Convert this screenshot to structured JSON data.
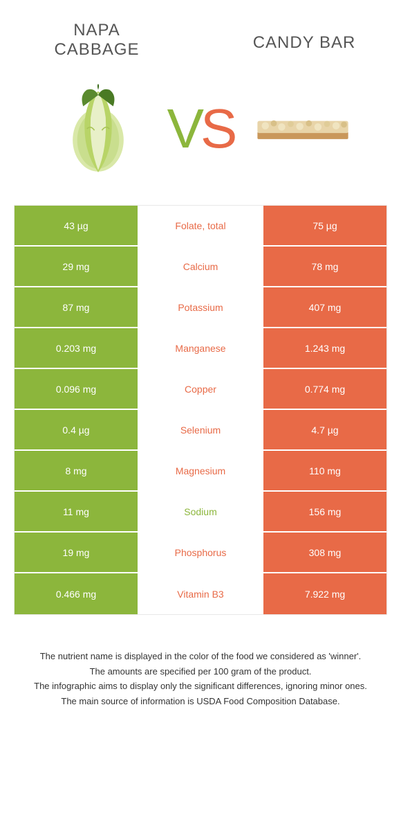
{
  "titles": {
    "left": "NAPA CABBAGE",
    "right": "CANDY BAR"
  },
  "vs": {
    "v": "V",
    "s": "S"
  },
  "colors": {
    "green": "#8cb63c",
    "orange": "#e86a47",
    "bg": "#ffffff",
    "text": "#333333"
  },
  "rows": [
    {
      "left": "43 µg",
      "label": "Folate, total",
      "winner": "orange",
      "right": "75 µg"
    },
    {
      "left": "29 mg",
      "label": "Calcium",
      "winner": "orange",
      "right": "78 mg"
    },
    {
      "left": "87 mg",
      "label": "Potassium",
      "winner": "orange",
      "right": "407 mg"
    },
    {
      "left": "0.203 mg",
      "label": "Manganese",
      "winner": "orange",
      "right": "1.243 mg"
    },
    {
      "left": "0.096 mg",
      "label": "Copper",
      "winner": "orange",
      "right": "0.774 mg"
    },
    {
      "left": "0.4 µg",
      "label": "Selenium",
      "winner": "orange",
      "right": "4.7 µg"
    },
    {
      "left": "8 mg",
      "label": "Magnesium",
      "winner": "orange",
      "right": "110 mg"
    },
    {
      "left": "11 mg",
      "label": "Sodium",
      "winner": "green",
      "right": "156 mg"
    },
    {
      "left": "19 mg",
      "label": "Phosphorus",
      "winner": "orange",
      "right": "308 mg"
    },
    {
      "left": "0.466 mg",
      "label": "Vitamin B3",
      "winner": "orange",
      "right": "7.922 mg"
    }
  ],
  "footer": [
    "The nutrient name is displayed in the color of the food we considered as 'winner'.",
    "The amounts are specified per 100 gram of the product.",
    "The infographic aims to display only the significant differences, ignoring minor ones.",
    "The main source of information is USDA Food Composition Database."
  ]
}
